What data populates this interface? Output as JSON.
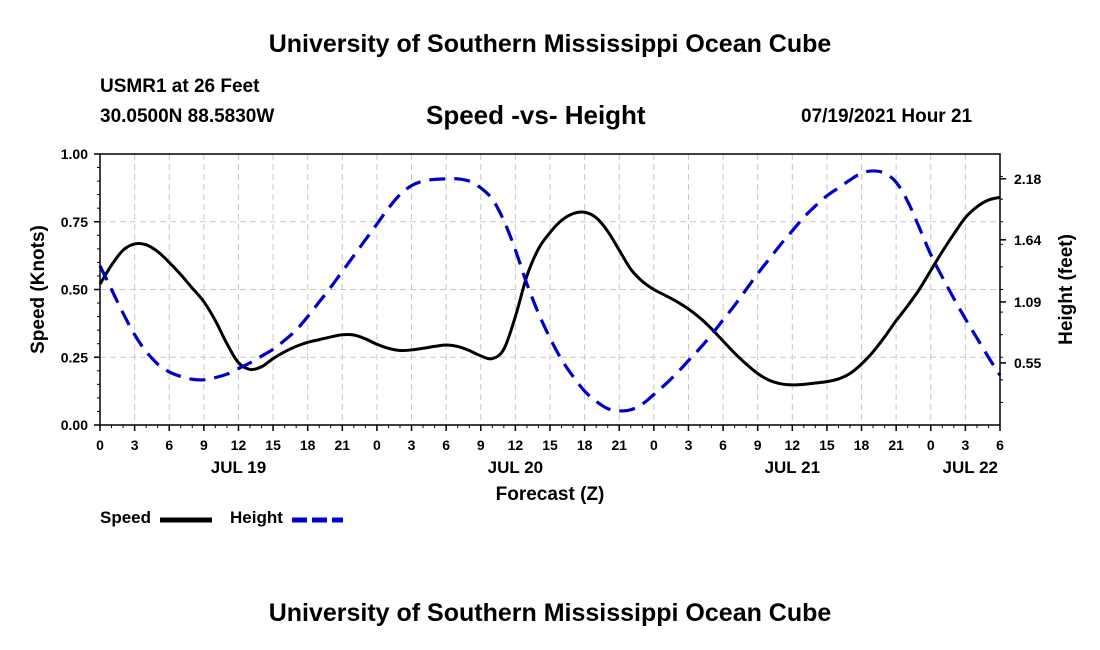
{
  "header": {
    "top_title": "University of Southern Mississippi Ocean Cube",
    "station": "USMR1 at 26 Feet",
    "coords": "30.0500N  88.5830W",
    "timestamp": "07/19/2021 Hour 21",
    "bottom_title": "University of Southern Mississippi Ocean Cube"
  },
  "legend": {
    "speed_label": "Speed",
    "height_label": "Height"
  },
  "colors": {
    "speed": "#000000",
    "height": "#0000cc",
    "grid": "#c8c8c8"
  },
  "chart_data": {
    "type": "line",
    "title": "Speed -vs- Height",
    "xlabel": "Forecast (Z)",
    "ylabel": "Speed (Knots)",
    "y2label": "Height (feet)",
    "x_range": [
      0,
      78
    ],
    "x_unit": "hours from 00Z Jul 19",
    "x_ticks": [
      {
        "x": 0,
        "label": "0"
      },
      {
        "x": 3,
        "label": "3"
      },
      {
        "x": 6,
        "label": "6"
      },
      {
        "x": 9,
        "label": "9"
      },
      {
        "x": 12,
        "label": "12"
      },
      {
        "x": 15,
        "label": "15"
      },
      {
        "x": 18,
        "label": "18"
      },
      {
        "x": 21,
        "label": "21"
      },
      {
        "x": 24,
        "label": "0"
      },
      {
        "x": 27,
        "label": "3"
      },
      {
        "x": 30,
        "label": "6"
      },
      {
        "x": 33,
        "label": "9"
      },
      {
        "x": 36,
        "label": "12"
      },
      {
        "x": 39,
        "label": "15"
      },
      {
        "x": 42,
        "label": "18"
      },
      {
        "x": 45,
        "label": "21"
      },
      {
        "x": 48,
        "label": "0"
      },
      {
        "x": 51,
        "label": "3"
      },
      {
        "x": 54,
        "label": "6"
      },
      {
        "x": 57,
        "label": "9"
      },
      {
        "x": 60,
        "label": "12"
      },
      {
        "x": 63,
        "label": "15"
      },
      {
        "x": 66,
        "label": "18"
      },
      {
        "x": 69,
        "label": "21"
      },
      {
        "x": 72,
        "label": "0"
      },
      {
        "x": 75,
        "label": "3"
      },
      {
        "x": 78,
        "label": "6"
      }
    ],
    "day_labels": [
      {
        "x": 12,
        "label": "JUL 19"
      },
      {
        "x": 36,
        "label": "JUL 20"
      },
      {
        "x": 60,
        "label": "JUL 21"
      },
      {
        "x": 78,
        "label": "JUL 22"
      }
    ],
    "y_left": {
      "range": [
        0,
        1
      ],
      "ticks": [
        {
          "v": 0,
          "label": "0.00"
        },
        {
          "v": 0.25,
          "label": "0.25"
        },
        {
          "v": 0.5,
          "label": "0.50"
        },
        {
          "v": 0.75,
          "label": "0.75"
        },
        {
          "v": 1.0,
          "label": "1.00"
        }
      ]
    },
    "y_right": {
      "range": [
        0,
        2.4
      ],
      "ticks": [
        {
          "v": 0.55,
          "label": "0.55"
        },
        {
          "v": 1.09,
          "label": "1.09"
        },
        {
          "v": 1.64,
          "label": "1.64"
        },
        {
          "v": 2.18,
          "label": "2.18"
        }
      ]
    },
    "grid": true,
    "series": [
      {
        "name": "Speed",
        "axis": "left",
        "style": "solid",
        "points": [
          [
            0,
            0.52
          ],
          [
            1,
            0.59
          ],
          [
            2,
            0.645
          ],
          [
            3,
            0.668
          ],
          [
            4,
            0.665
          ],
          [
            5,
            0.64
          ],
          [
            6,
            0.6
          ],
          [
            7,
            0.555
          ],
          [
            8,
            0.505
          ],
          [
            9,
            0.455
          ],
          [
            10,
            0.385
          ],
          [
            11,
            0.3
          ],
          [
            12,
            0.23
          ],
          [
            13,
            0.205
          ],
          [
            14,
            0.215
          ],
          [
            15,
            0.245
          ],
          [
            16,
            0.27
          ],
          [
            17,
            0.29
          ],
          [
            18,
            0.305
          ],
          [
            19,
            0.315
          ],
          [
            20,
            0.325
          ],
          [
            21,
            0.333
          ],
          [
            22,
            0.332
          ],
          [
            23,
            0.318
          ],
          [
            24,
            0.298
          ],
          [
            25,
            0.283
          ],
          [
            26,
            0.275
          ],
          [
            27,
            0.277
          ],
          [
            28,
            0.283
          ],
          [
            29,
            0.29
          ],
          [
            30,
            0.295
          ],
          [
            31,
            0.29
          ],
          [
            32,
            0.275
          ],
          [
            33,
            0.255
          ],
          [
            34,
            0.245
          ],
          [
            35,
            0.28
          ],
          [
            36,
            0.4
          ],
          [
            37,
            0.55
          ],
          [
            38,
            0.65
          ],
          [
            39,
            0.71
          ],
          [
            40,
            0.755
          ],
          [
            41,
            0.78
          ],
          [
            42,
            0.785
          ],
          [
            43,
            0.765
          ],
          [
            44,
            0.715
          ],
          [
            45,
            0.645
          ],
          [
            46,
            0.575
          ],
          [
            47,
            0.53
          ],
          [
            48,
            0.5
          ],
          [
            49,
            0.478
          ],
          [
            50,
            0.455
          ],
          [
            51,
            0.428
          ],
          [
            52,
            0.395
          ],
          [
            53,
            0.355
          ],
          [
            54,
            0.31
          ],
          [
            55,
            0.265
          ],
          [
            56,
            0.225
          ],
          [
            57,
            0.19
          ],
          [
            58,
            0.165
          ],
          [
            59,
            0.152
          ],
          [
            60,
            0.148
          ],
          [
            61,
            0.15
          ],
          [
            62,
            0.155
          ],
          [
            63,
            0.16
          ],
          [
            64,
            0.17
          ],
          [
            65,
            0.19
          ],
          [
            66,
            0.225
          ],
          [
            67,
            0.27
          ],
          [
            68,
            0.325
          ],
          [
            69,
            0.385
          ],
          [
            70,
            0.44
          ],
          [
            71,
            0.5
          ],
          [
            72,
            0.57
          ],
          [
            73,
            0.64
          ],
          [
            74,
            0.705
          ],
          [
            75,
            0.765
          ],
          [
            76,
            0.805
          ],
          [
            77,
            0.83
          ],
          [
            78,
            0.84
          ]
        ]
      },
      {
        "name": "Height",
        "axis": "right",
        "style": "dashed",
        "points": [
          [
            0,
            1.41
          ],
          [
            1,
            1.2
          ],
          [
            2,
            0.99
          ],
          [
            3,
            0.8
          ],
          [
            4,
            0.65
          ],
          [
            5,
            0.54
          ],
          [
            6,
            0.47
          ],
          [
            7,
            0.43
          ],
          [
            8,
            0.405
          ],
          [
            9,
            0.4
          ],
          [
            10,
            0.42
          ],
          [
            11,
            0.45
          ],
          [
            12,
            0.5
          ],
          [
            13,
            0.55
          ],
          [
            14,
            0.61
          ],
          [
            15,
            0.67
          ],
          [
            16,
            0.75
          ],
          [
            17,
            0.84
          ],
          [
            18,
            0.96
          ],
          [
            19,
            1.09
          ],
          [
            20,
            1.22
          ],
          [
            21,
            1.36
          ],
          [
            22,
            1.5
          ],
          [
            23,
            1.64
          ],
          [
            24,
            1.78
          ],
          [
            25,
            1.92
          ],
          [
            26,
            2.04
          ],
          [
            27,
            2.12
          ],
          [
            28,
            2.16
          ],
          [
            29,
            2.175
          ],
          [
            30,
            2.18
          ],
          [
            31,
            2.18
          ],
          [
            32,
            2.16
          ],
          [
            33,
            2.1
          ],
          [
            34,
            2.0
          ],
          [
            35,
            1.81
          ],
          [
            36,
            1.55
          ],
          [
            37,
            1.25
          ],
          [
            38,
            0.99
          ],
          [
            39,
            0.77
          ],
          [
            40,
            0.58
          ],
          [
            41,
            0.43
          ],
          [
            42,
            0.3
          ],
          [
            43,
            0.21
          ],
          [
            44,
            0.145
          ],
          [
            45,
            0.125
          ],
          [
            46,
            0.135
          ],
          [
            47,
            0.185
          ],
          [
            48,
            0.27
          ],
          [
            49,
            0.36
          ],
          [
            50,
            0.46
          ],
          [
            51,
            0.57
          ],
          [
            52,
            0.68
          ],
          [
            53,
            0.8
          ],
          [
            54,
            0.93
          ],
          [
            55,
            1.06
          ],
          [
            56,
            1.2
          ],
          [
            57,
            1.34
          ],
          [
            58,
            1.47
          ],
          [
            59,
            1.6
          ],
          [
            60,
            1.72
          ],
          [
            61,
            1.84
          ],
          [
            62,
            1.94
          ],
          [
            63,
            2.03
          ],
          [
            64,
            2.1
          ],
          [
            65,
            2.17
          ],
          [
            66,
            2.23
          ],
          [
            67,
            2.25
          ],
          [
            68,
            2.23
          ],
          [
            69,
            2.15
          ],
          [
            70,
            1.98
          ],
          [
            71,
            1.75
          ],
          [
            72,
            1.51
          ],
          [
            73,
            1.31
          ],
          [
            74,
            1.12
          ],
          [
            75,
            0.94
          ],
          [
            76,
            0.77
          ],
          [
            77,
            0.6
          ],
          [
            78,
            0.44
          ]
        ]
      }
    ]
  }
}
